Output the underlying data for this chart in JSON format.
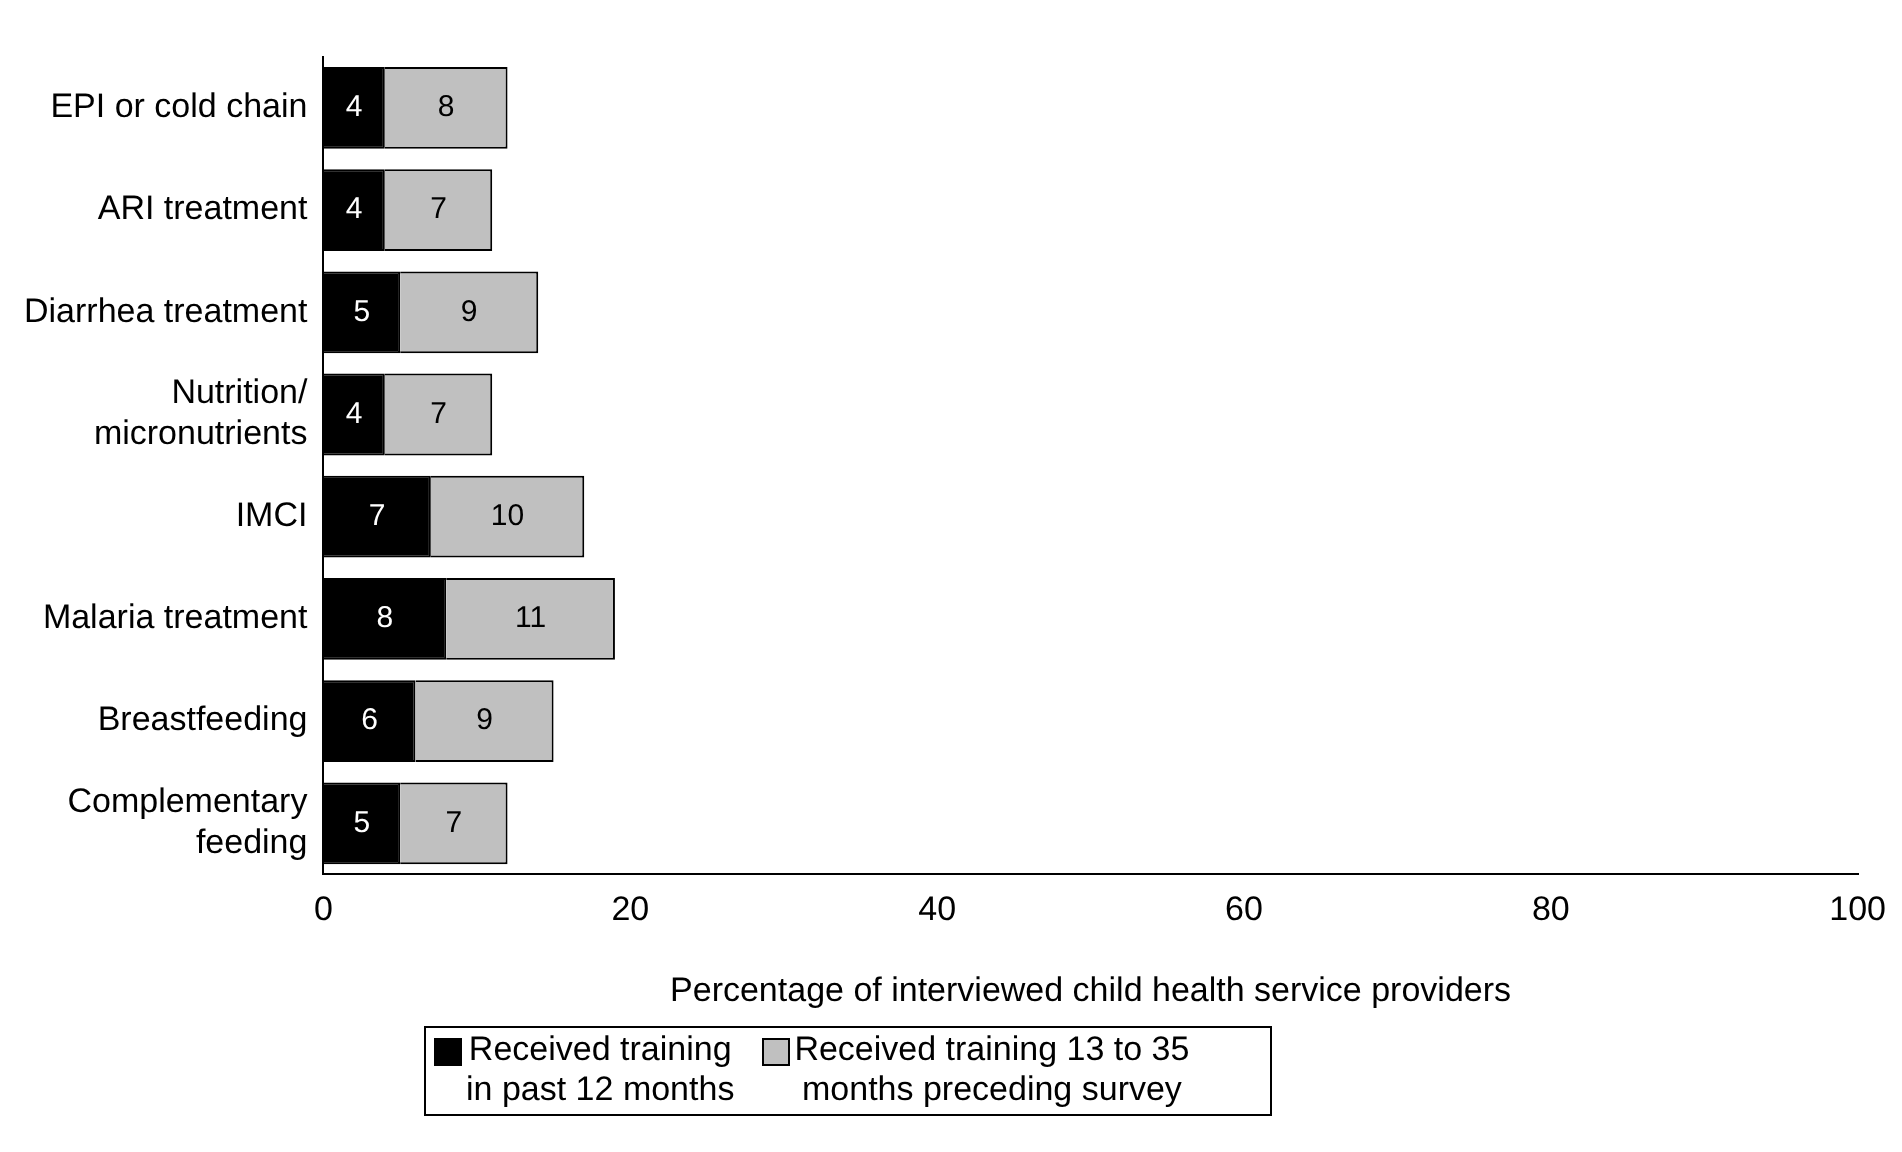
{
  "chart_data": {
    "type": "bar",
    "orientation": "horizontal",
    "stacked": true,
    "data_labels": true,
    "grid": false,
    "legend": "bottom",
    "xlabel": "Percentage of interviewed child health service providers",
    "categories": [
      "EPI or cold chain",
      "ARI treatment",
      "Diarrhea treatment",
      "Nutrition/\nmicronutrients",
      "IMCI",
      "Malaria treatment",
      "Breastfeeding",
      "Complementary\nfeeding"
    ],
    "series": [
      {
        "name": "Received training\nin past 12 months",
        "color": "#000000",
        "values": [
          4,
          4,
          5,
          4,
          7,
          8,
          6,
          5
        ]
      },
      {
        "name": "Received training 13 to 35\nmonths preceding survey",
        "color": "#c0c0c0",
        "values": [
          8,
          7,
          9,
          7,
          10,
          11,
          9,
          7
        ]
      }
    ],
    "xlim": [
      0,
      100
    ],
    "xticks": [
      0,
      20,
      40,
      60,
      80,
      100
    ]
  }
}
